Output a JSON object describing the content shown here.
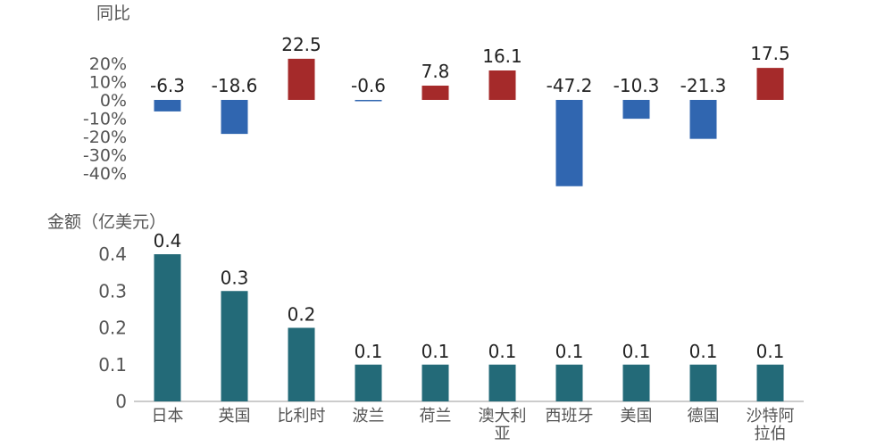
{
  "chart_data": [
    {
      "type": "bar",
      "title": "",
      "ylabel": "同比",
      "xlabel": "",
      "categories": [
        "日本",
        "英国",
        "比利时",
        "波兰",
        "荷兰",
        "澳大利亚",
        "西班牙",
        "美国",
        "德国",
        "沙特阿拉伯"
      ],
      "values": [
        -6.3,
        -18.6,
        22.5,
        -0.6,
        7.8,
        16.1,
        -47.2,
        -10.3,
        -21.3,
        17.5
      ],
      "data_labels": [
        "-6.3",
        "-18.6",
        "22.5",
        "-0.6",
        "7.8",
        "16.1",
        "-47.2",
        "-10.3",
        "-21.3",
        "17.5"
      ],
      "yticks": [
        "20%",
        "10%",
        "0%",
        "-10%",
        "-20%",
        "-30%",
        "-40%"
      ],
      "ylim": [
        -50,
        25
      ],
      "grid": false,
      "colors": {
        "positive": "#A52A2A",
        "negative": "#3066B0"
      }
    },
    {
      "type": "bar",
      "title": "",
      "ylabel": "金额（亿美元）",
      "xlabel": "",
      "categories": [
        "日本",
        "英国",
        "比利时",
        "波兰",
        "荷兰",
        "澳大利亚",
        "西班牙",
        "美国",
        "德国",
        "沙特阿拉伯"
      ],
      "category_labels": [
        [
          "日本"
        ],
        [
          "英国"
        ],
        [
          "比利时"
        ],
        [
          "波兰"
        ],
        [
          "荷兰"
        ],
        [
          "澳大利",
          "亚"
        ],
        [
          "西班牙"
        ],
        [
          "美国"
        ],
        [
          "德国"
        ],
        [
          "沙特阿",
          "拉伯"
        ]
      ],
      "values": [
        0.4,
        0.3,
        0.2,
        0.1,
        0.1,
        0.1,
        0.1,
        0.1,
        0.1,
        0.1
      ],
      "data_labels": [
        "0.4",
        "0.3",
        "0.2",
        "0.1",
        "0.1",
        "0.1",
        "0.1",
        "0.1",
        "0.1",
        "0.1"
      ],
      "yticks": [
        "0.4",
        "0.3",
        "0.2",
        "0.1",
        "0"
      ],
      "ylim": [
        0,
        0.4
      ],
      "grid": false,
      "colors": {
        "bar": "#236A78"
      }
    }
  ]
}
